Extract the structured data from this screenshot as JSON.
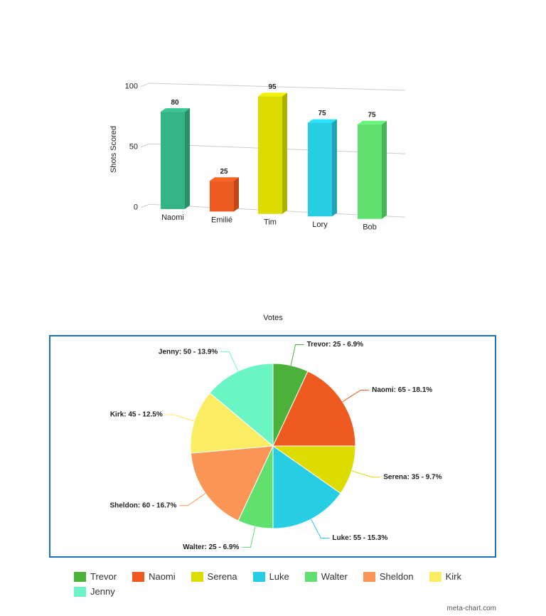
{
  "chart_data": [
    {
      "type": "bar3d",
      "y_label": "Shots Scored",
      "categories": [
        "Naomi",
        "Emilié",
        "Tim",
        "Lory",
        "Bob"
      ],
      "values": [
        80,
        25,
        95,
        75,
        75
      ],
      "colors": [
        "#34b484",
        "#ee5a1f",
        "#dcdc00",
        "#26cde3",
        "#5fe06f"
      ],
      "ylim": [
        0,
        100
      ],
      "yticks": [
        0,
        50,
        100
      ],
      "grid": true
    },
    {
      "type": "pie",
      "title": "Votes",
      "categories": [
        "Trevor",
        "Naomi",
        "Serena",
        "Luke",
        "Walter",
        "Sheldon",
        "Kirk",
        "Jenny"
      ],
      "values": [
        25,
        65,
        35,
        55,
        25,
        60,
        45,
        50
      ],
      "value_labels": [
        "Trevor: 25 - 6.9%",
        "Naomi: 65 - 18.1%",
        "Serena: 35 - 9.7%",
        "Luke: 55 - 15.3%",
        "Walter: 25 - 6.9%",
        "Sheldon: 60 - 16.7%",
        "Kirk: 45 - 12.5%",
        "Jenny: 50 - 13.9%"
      ],
      "colors": [
        "#4cb13a",
        "#ee5a1f",
        "#dcdc00",
        "#26cde3",
        "#5fe06f",
        "#fb9555",
        "#fcec62",
        "#6cf5c4"
      ]
    }
  ],
  "credit": "meta-chart.com"
}
